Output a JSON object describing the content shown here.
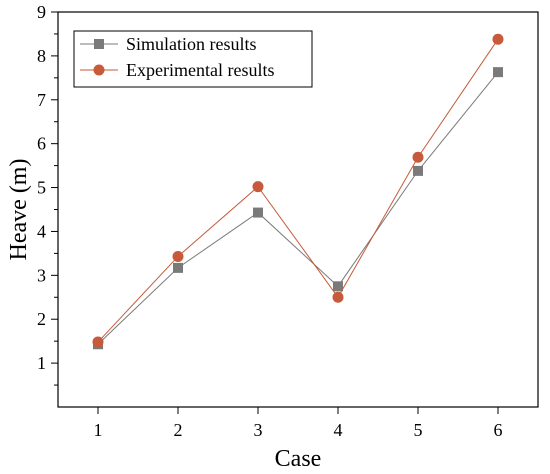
{
  "chart_data": {
    "type": "line",
    "title": "",
    "xlabel": "Case",
    "ylabel": "Heave (m)",
    "categories": [
      "1",
      "2",
      "3",
      "4",
      "5",
      "6"
    ],
    "x": [
      1,
      2,
      3,
      4,
      5,
      6
    ],
    "xlim": [
      0.5,
      6.5
    ],
    "ylim": [
      0,
      9
    ],
    "yticks": [
      "1",
      "2",
      "3",
      "4",
      "5",
      "6",
      "7",
      "8",
      "9"
    ],
    "grid": false,
    "legend_position": "top-left",
    "series": [
      {
        "name": "Simulation results",
        "marker": "square",
        "color": "#7a7a7a",
        "values": [
          1.43,
          3.17,
          4.43,
          2.75,
          5.38,
          7.63
        ]
      },
      {
        "name": "Experimental results",
        "marker": "circle",
        "color": "#c65a3a",
        "values": [
          1.48,
          3.43,
          5.02,
          2.5,
          5.69,
          8.38
        ]
      }
    ]
  }
}
